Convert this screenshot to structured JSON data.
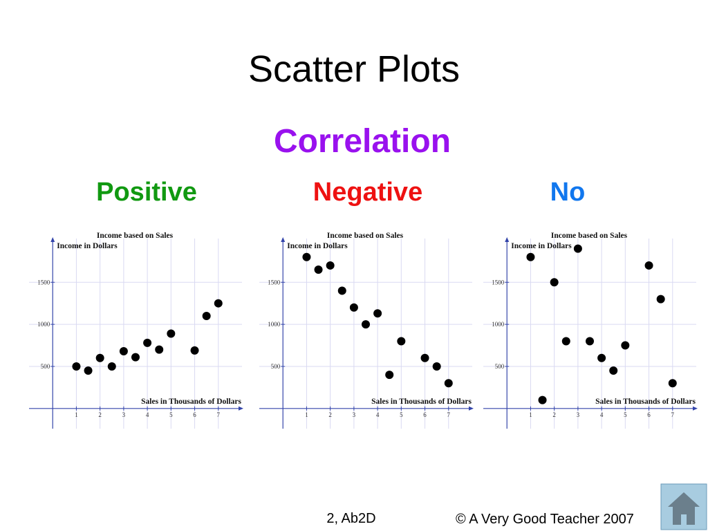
{
  "title": "Scatter Plots",
  "subtitle": "Correlation",
  "footer": "2, Ab2D",
  "copyright": "© A Very Good Teacher 2007",
  "chart_data": [
    {
      "type": "scatter",
      "heading": "Positive",
      "heading_color": "#119911",
      "title": "Income based on Sales",
      "y_label": "Income in Dollars",
      "x_label": "Sales in Thousands of Dollars",
      "color": "#000000",
      "grid": true,
      "x": [
        1,
        1.5,
        2,
        2.5,
        3,
        3.5,
        4,
        4.5,
        5,
        6,
        6.5,
        7
      ],
      "values": [
        500,
        450,
        600,
        500,
        680,
        610,
        780,
        700,
        890,
        690,
        1100,
        1250
      ],
      "xlim": [
        -1,
        8
      ],
      "ylim": [
        -240,
        2020
      ],
      "xticks": [
        1,
        2,
        3,
        4,
        5,
        6,
        7
      ],
      "yticks": [
        500,
        1000,
        1500
      ]
    },
    {
      "type": "scatter",
      "heading": "Negative",
      "heading_color": "#ee1111",
      "title": "Income based on Sales",
      "y_label": "Income in Dollars",
      "x_label": "Sales in Thousands of Dollars",
      "color": "#000000",
      "grid": true,
      "x": [
        1,
        1.5,
        2,
        2.5,
        3,
        3.5,
        4,
        4.5,
        5,
        6,
        6.5,
        7
      ],
      "values": [
        1800,
        1650,
        1700,
        1400,
        1200,
        1000,
        1130,
        400,
        800,
        600,
        500,
        300
      ],
      "xlim": [
        -1,
        8
      ],
      "ylim": [
        -240,
        2020
      ],
      "xticks": [
        1,
        2,
        3,
        4,
        5,
        6,
        7
      ],
      "yticks": [
        500,
        1000,
        1500
      ]
    },
    {
      "type": "scatter",
      "heading": "No",
      "heading_color": "#1177ee",
      "title": "Income based on Sales",
      "y_label": "Income in Dollars",
      "x_label": "Sales in Thousands of Dollars",
      "color": "#000000",
      "grid": true,
      "x": [
        1,
        1.5,
        2,
        2.5,
        3,
        3.5,
        4,
        4.5,
        5,
        6,
        6.5,
        7
      ],
      "values": [
        1800,
        100,
        1500,
        800,
        1900,
        800,
        600,
        450,
        750,
        1700,
        1300,
        300
      ],
      "xlim": [
        -1,
        8
      ],
      "ylim": [
        -240,
        2020
      ],
      "xticks": [
        1,
        2,
        3,
        4,
        5,
        6,
        7
      ],
      "yticks": [
        500,
        1000,
        1500
      ]
    }
  ]
}
